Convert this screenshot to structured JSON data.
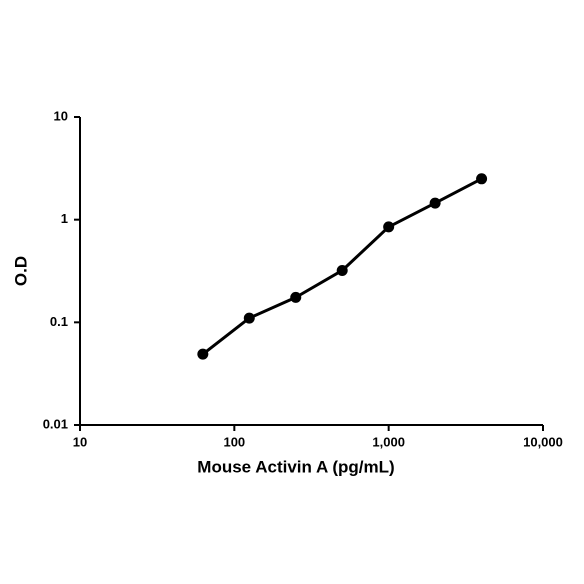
{
  "chart_data": {
    "type": "line",
    "xlabel": "Mouse Activin A (pg/mL)",
    "ylabel": "O.D",
    "xscale": "log",
    "yscale": "log",
    "x": [
      62.5,
      125,
      250,
      500,
      1000,
      2000,
      4000
    ],
    "series": [
      {
        "color": "#000000",
        "values": [
          0.049,
          0.11,
          0.175,
          0.32,
          0.85,
          1.45,
          2.5
        ]
      }
    ],
    "xlim": [
      10,
      10000
    ],
    "ylim": [
      0.01,
      10
    ],
    "xticks": [
      10,
      100,
      {
        "value": 1000,
        "label": "1,000"
      },
      {
        "value": 10000,
        "label": "10,000"
      }
    ],
    "yticks": [
      0.01,
      0.1,
      1,
      10
    ]
  }
}
